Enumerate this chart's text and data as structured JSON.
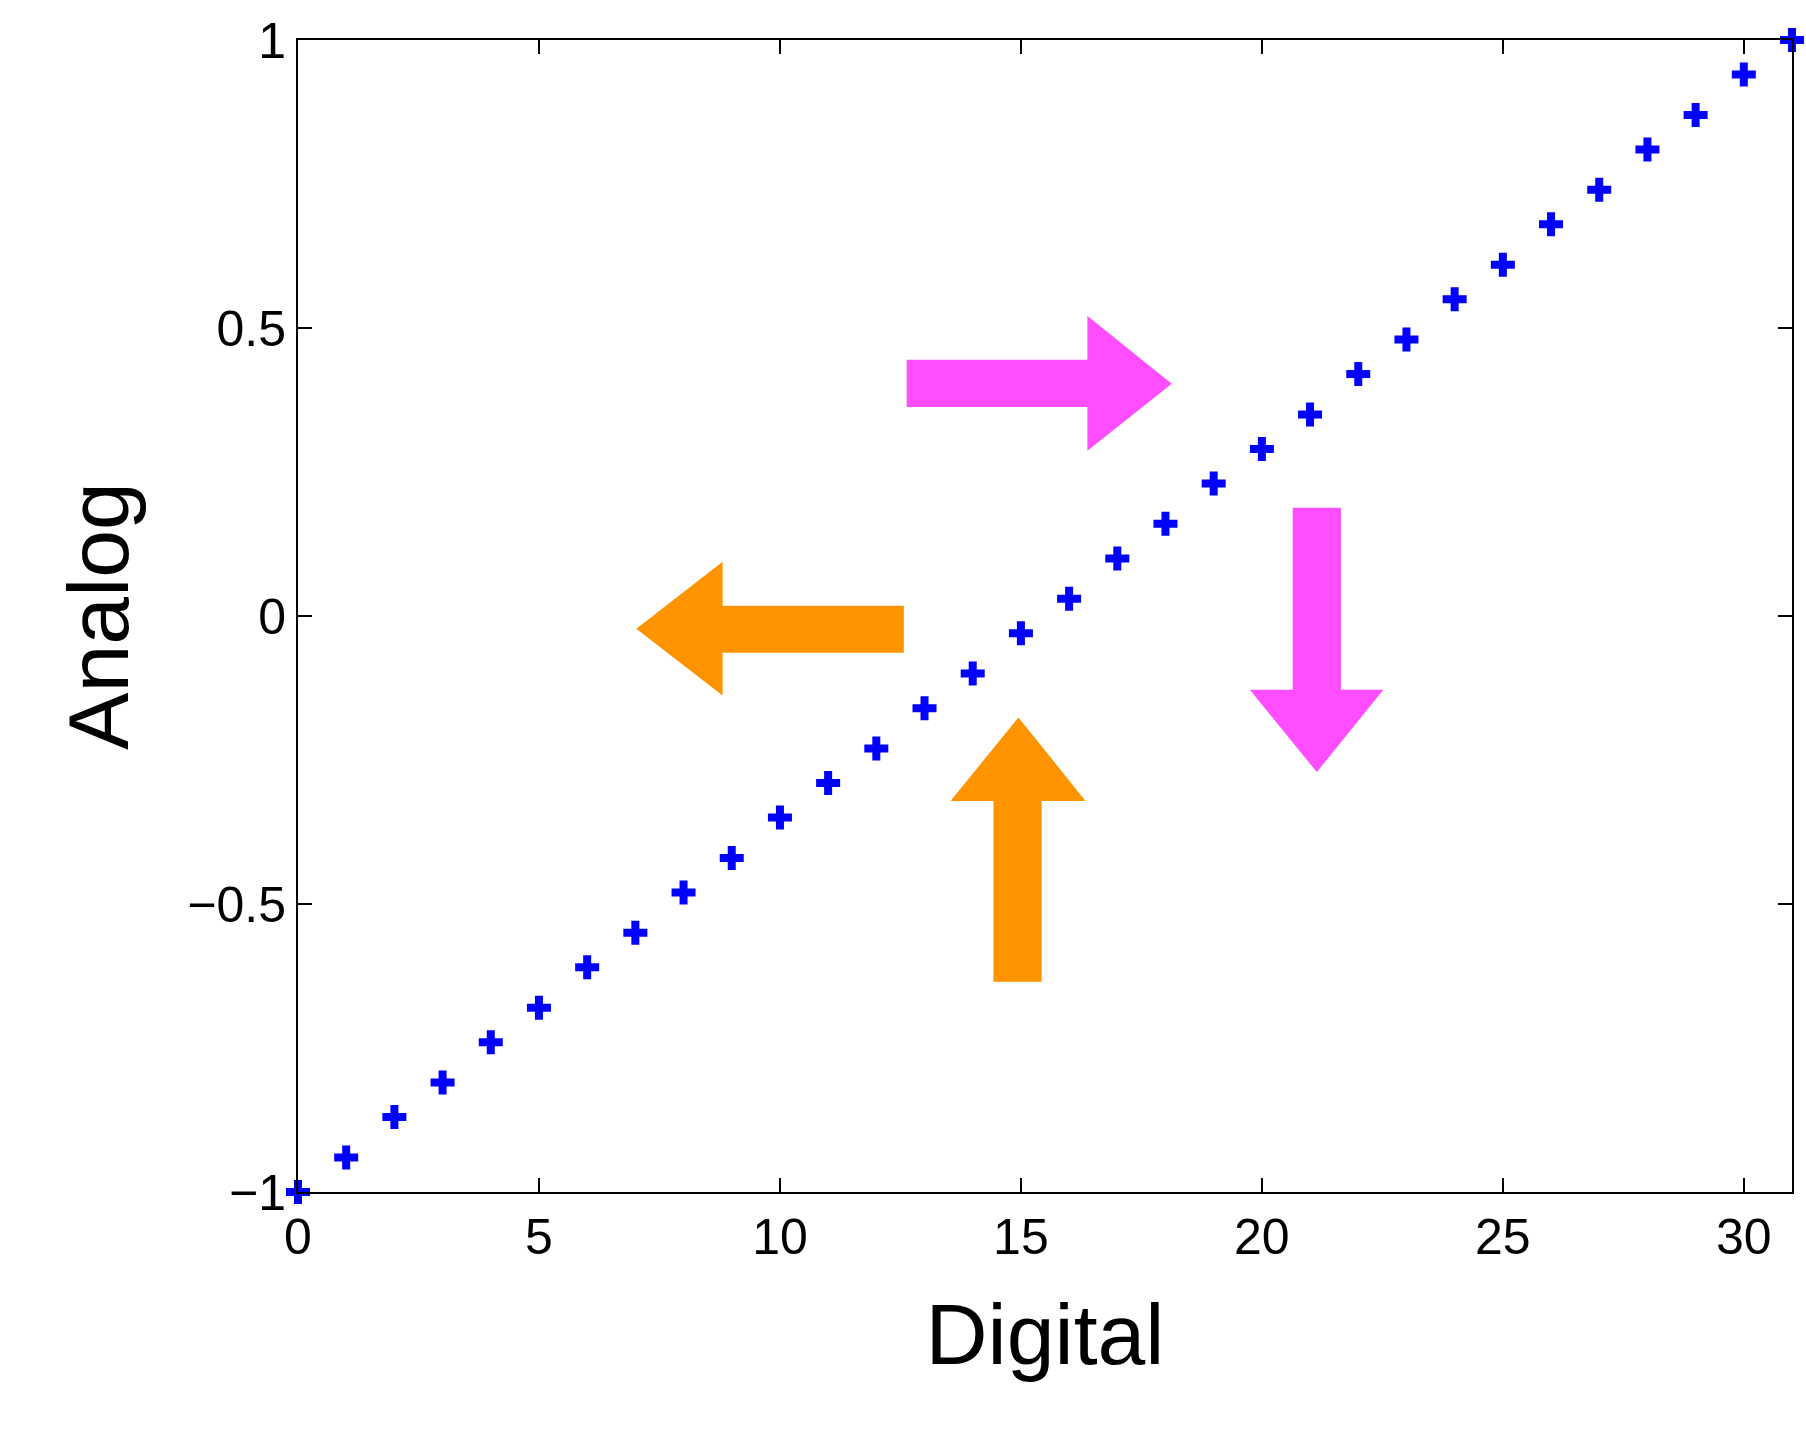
{
  "chart_data": {
    "type": "scatter",
    "xlabel": "Digital",
    "ylabel": "Analog",
    "x": [
      0,
      1,
      2,
      3,
      4,
      5,
      6,
      7,
      8,
      9,
      10,
      11,
      12,
      13,
      14,
      15,
      16,
      17,
      18,
      19,
      20,
      21,
      22,
      23,
      24,
      25,
      26,
      27,
      28,
      29,
      30,
      31
    ],
    "series": [
      {
        "color": "#0000ff",
        "values": [
          -1.0,
          -0.94,
          -0.87,
          -0.81,
          -0.74,
          -0.68,
          -0.61,
          -0.55,
          -0.48,
          -0.42,
          -0.35,
          -0.29,
          -0.23,
          -0.16,
          -0.1,
          -0.03,
          0.03,
          0.1,
          0.16,
          0.23,
          0.29,
          0.35,
          0.42,
          0.48,
          0.55,
          0.61,
          0.68,
          0.74,
          0.81,
          0.87,
          0.94,
          1.0
        ]
      }
    ],
    "marker": "cross",
    "xlim": [
      0,
      31
    ],
    "xticks": [
      0,
      5,
      10,
      15,
      20,
      25,
      30
    ],
    "ylim": [
      -1,
      1
    ],
    "yticks": [
      {
        "value": -1,
        "label": "−1"
      },
      {
        "value": -0.5,
        "label": "−0.5"
      },
      0,
      0.5,
      1
    ]
  }
}
